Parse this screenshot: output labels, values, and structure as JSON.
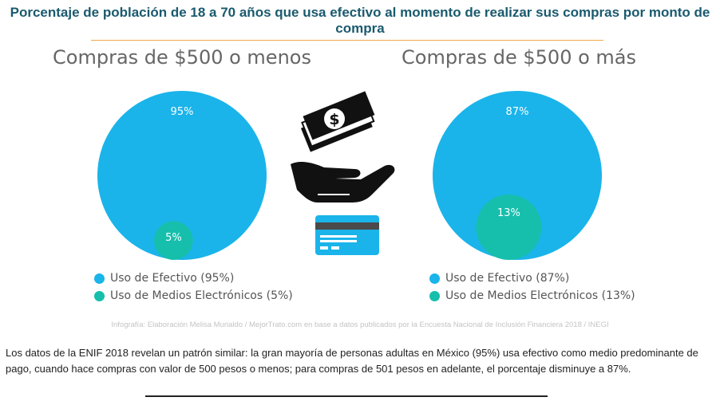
{
  "header": {
    "title": "Porcentaje de población de 18 a 70 años que usa efectivo al momento de realizar sus compras por monto de compra"
  },
  "chart_data": [
    {
      "type": "bubble",
      "title": "Compras de $500 o menos",
      "series": [
        {
          "name": "Uso de Efectivo",
          "value": 95,
          "label": "95%",
          "color": "#1ab4ea"
        },
        {
          "name": "Uso de Medios Electrónicos",
          "value": 5,
          "label": "5%",
          "color": "#16bfac"
        }
      ],
      "legend": [
        "Uso de Efectivo (95%)",
        "Uso de Medios Electrónicos (5%)"
      ],
      "legend_position": "bottom"
    },
    {
      "type": "bubble",
      "title": "Compras de $500 o más",
      "series": [
        {
          "name": "Uso de Efectivo",
          "value": 87,
          "label": "87%",
          "color": "#1ab4ea"
        },
        {
          "name": "Uso de Medios Electrónicos",
          "value": 13,
          "label": "13%",
          "color": "#16bfac"
        }
      ],
      "legend": [
        "Uso de Efectivo (87%)",
        "Uso de Medios Electrónicos (13%)"
      ],
      "legend_position": "bottom"
    }
  ],
  "icons": [
    "money-bill-icon",
    "dollar-sign-icon",
    "hand-icon",
    "credit-card-icon"
  ],
  "source": "Infografía: Elaboración Melisa Murialdo / MejorTrato.com en base a datos publicados por la Encuesta Nacional de Inclusión Financiera 2018 / INEGI",
  "body_text": "Los datos de la ENIF 2018 revelan un patrón similar: la gran mayoría de personas adultas en México (95%) usa efectivo como medio predominante de pago, cuando hace compras con valor de 500 pesos o menos; para compras de 501 pesos en adelante, el porcentaje disminuye a 87%."
}
